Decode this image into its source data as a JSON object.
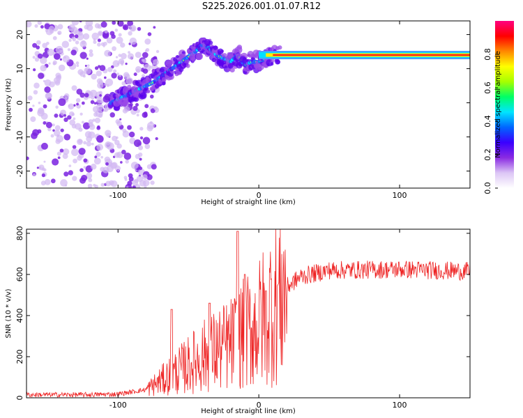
{
  "title": "S225.2026.001.01.07.R12",
  "chart_data": [
    {
      "type": "heatmap",
      "xlabel": "Height of straight line (km)",
      "ylabel": "Frequency (Hz)",
      "xlim": [
        -165,
        150
      ],
      "ylim": [
        -25,
        24
      ],
      "x_ticks": [
        -100,
        0,
        100
      ],
      "y_ticks": [
        20,
        10,
        0,
        -10,
        -20
      ],
      "track": {
        "x": [
          -105,
          -95,
          -85,
          -75,
          -65,
          -55,
          -45,
          -40,
          -35,
          -30,
          -25,
          -20,
          -15,
          -10,
          -5,
          0,
          5,
          10,
          15,
          30,
          60,
          100,
          150
        ],
        "y": [
          0,
          2,
          4,
          6,
          9,
          12,
          15,
          17,
          16,
          14,
          13,
          12,
          14,
          11,
          12,
          12,
          13,
          14,
          14,
          14,
          14,
          14,
          14
        ]
      },
      "colorbar": {
        "label": "Normalized spectral amplitude",
        "range": [
          0,
          1
        ],
        "ticks": [
          "0.0",
          "0.2",
          "0.4",
          "0.6",
          "0.8"
        ],
        "colors": [
          "#ffffff",
          "#dcc6f5",
          "#8a2be2",
          "#3a00ff",
          "#0066ff",
          "#00e5ff",
          "#00ff66",
          "#a6ff00",
          "#ffff00",
          "#ff8800",
          "#ff0000",
          "#ff0080"
        ]
      }
    },
    {
      "type": "line",
      "xlabel": "Height of straight line (km)",
      "ylabel": "SNR (10 * v/v)",
      "xlim": [
        -165,
        150
      ],
      "ylim": [
        0,
        820
      ],
      "x_ticks": [
        -100,
        0,
        100
      ],
      "y_ticks": [
        0,
        200,
        400,
        600,
        800
      ],
      "series": [
        {
          "name": "SNR",
          "color": "#ee2222",
          "trend_x": [
            -165,
            -120,
            -100,
            -80,
            -60,
            -40,
            -20,
            0,
            10,
            20,
            30,
            50,
            100,
            150
          ],
          "trend_y": [
            15,
            15,
            18,
            40,
            120,
            200,
            260,
            360,
            460,
            540,
            590,
            620,
            625,
            615
          ],
          "spikes": [
            {
              "x": -62,
              "y": 430
            },
            {
              "x": -35,
              "y": 460
            },
            {
              "x": -15,
              "y": 810
            },
            {
              "x": -10,
              "y": 600
            },
            {
              "x": 5,
              "y": 520
            }
          ]
        }
      ]
    }
  ]
}
